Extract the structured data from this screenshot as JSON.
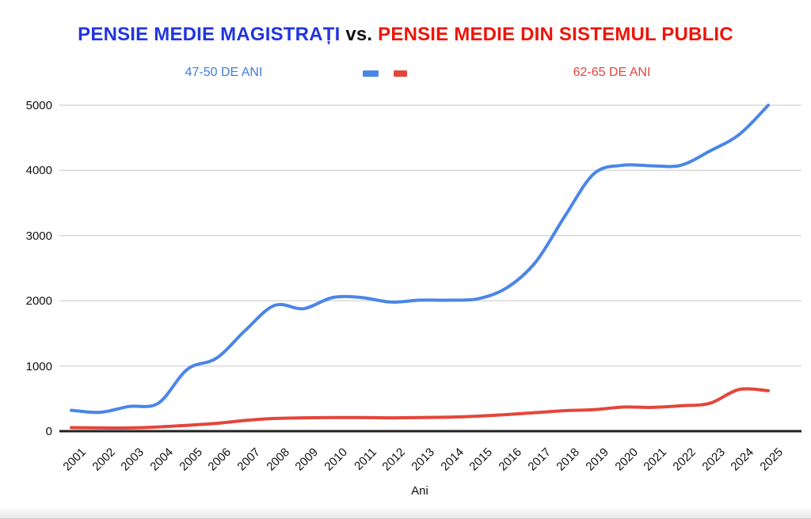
{
  "header": {
    "title_blue": "PENSIE MEDIE MAGISTRAȚI",
    "title_vs": " vs. ",
    "title_red": "PENSIE MEDIE DIN SISTEMUL PUBLIC"
  },
  "legend": {
    "left_label": "47-50 DE ANI",
    "right_label": "62-65 DE ANI"
  },
  "axis": {
    "x_title": "Ani"
  },
  "colors": {
    "title_blue": "#2135e0",
    "title_red": "#ef1408",
    "title_vs": "#111111",
    "legend_blue": "#3f7de0",
    "legend_red": "#e2453a",
    "line_blue": "#4a86e8",
    "line_red": "#e5453b",
    "grid": "#d9d9d9",
    "axis_line": "#212121",
    "tick_text": "#111111"
  },
  "chart_data": {
    "type": "line",
    "title": "PENSIE MEDIE MAGISTRAȚI vs. PENSIE MEDIE DIN SISTEMUL PUBLIC",
    "xlabel": "Ani",
    "ylabel": "",
    "ylim": [
      0,
      5000
    ],
    "yticks": [
      0,
      1000,
      2000,
      3000,
      4000,
      5000
    ],
    "grid": true,
    "smooth": true,
    "legend_position": "top",
    "categories": [
      2001,
      2002,
      2003,
      2004,
      2005,
      2006,
      2007,
      2008,
      2009,
      2010,
      2011,
      2012,
      2013,
      2014,
      2015,
      2016,
      2017,
      2018,
      2019,
      2020,
      2021,
      2022,
      2023,
      2024,
      2025
    ],
    "series": [
      {
        "name": "47-50 DE ANI",
        "color": "#4a86e8",
        "values": [
          320,
          290,
          380,
          430,
          950,
          1120,
          1550,
          1930,
          1880,
          2050,
          2050,
          1980,
          2010,
          2010,
          2030,
          2200,
          2600,
          3300,
          3950,
          4080,
          4070,
          4080,
          4300,
          4550,
          5000
        ]
      },
      {
        "name": "62-65 DE ANI",
        "color": "#e5453b",
        "values": [
          55,
          50,
          50,
          65,
          90,
          120,
          165,
          195,
          205,
          210,
          210,
          205,
          210,
          215,
          230,
          255,
          285,
          315,
          330,
          370,
          365,
          390,
          430,
          640,
          620
        ]
      }
    ]
  }
}
